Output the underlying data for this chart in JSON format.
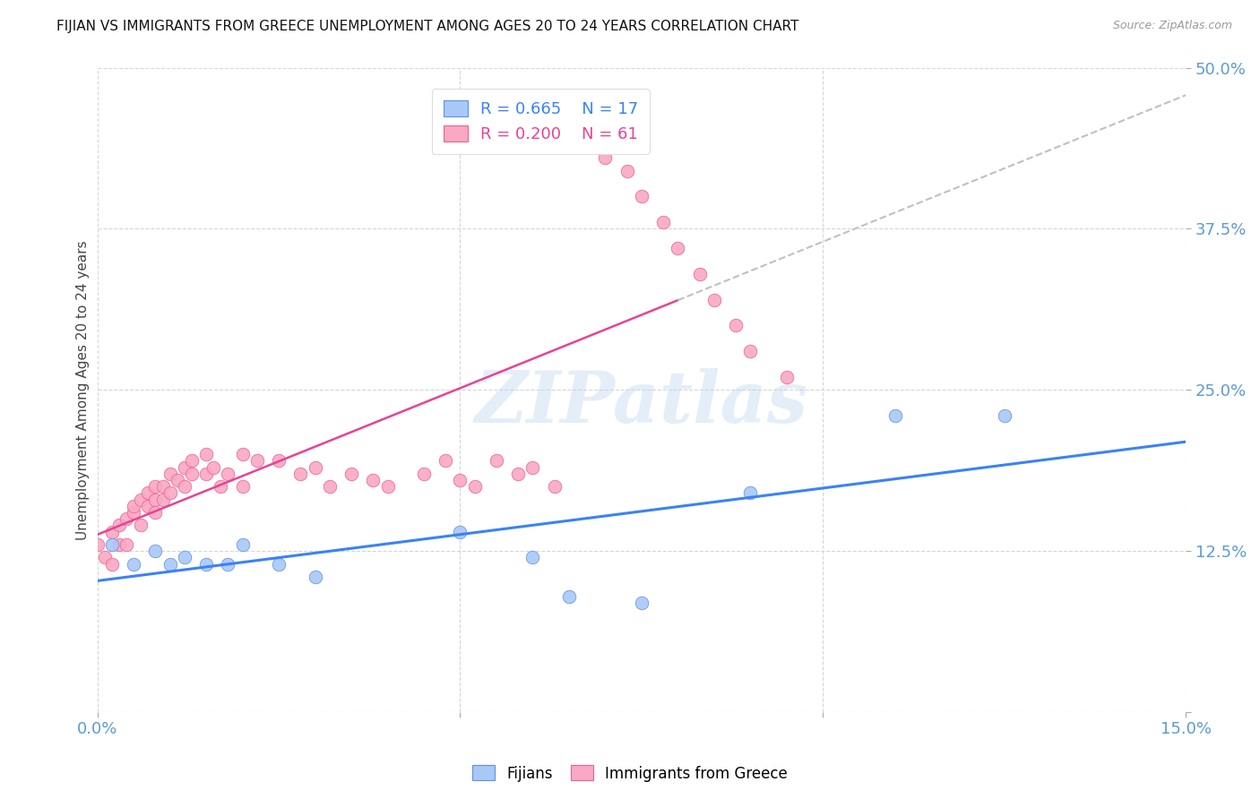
{
  "title": "FIJIAN VS IMMIGRANTS FROM GREECE UNEMPLOYMENT AMONG AGES 20 TO 24 YEARS CORRELATION CHART",
  "source": "Source: ZipAtlas.com",
  "ylabel": "Unemployment Among Ages 20 to 24 years",
  "xlim": [
    0.0,
    0.15
  ],
  "ylim": [
    0.0,
    0.5
  ],
  "xticks": [
    0.0,
    0.05,
    0.1,
    0.15
  ],
  "xticklabels": [
    "0.0%",
    "",
    "",
    "15.0%"
  ],
  "yticks": [
    0.0,
    0.125,
    0.25,
    0.375,
    0.5
  ],
  "yticklabels": [
    "",
    "12.5%",
    "25.0%",
    "37.5%",
    "50.0%"
  ],
  "legend": {
    "blue_r": "0.665",
    "blue_n": "17",
    "pink_r": "0.200",
    "pink_n": "61"
  },
  "fijians": {
    "color": "#a8c8f8",
    "trendline_color": "#3b82f6",
    "x": [
      0.002,
      0.005,
      0.008,
      0.01,
      0.012,
      0.015,
      0.018,
      0.02,
      0.025,
      0.03,
      0.05,
      0.06,
      0.065,
      0.075,
      0.09,
      0.11,
      0.125
    ],
    "y": [
      0.13,
      0.115,
      0.125,
      0.115,
      0.12,
      0.115,
      0.115,
      0.13,
      0.115,
      0.105,
      0.14,
      0.12,
      0.09,
      0.085,
      0.17,
      0.23,
      0.23
    ]
  },
  "greece": {
    "color": "#f9a8c4",
    "trendline_color": "#e84393",
    "x": [
      0.0,
      0.001,
      0.002,
      0.002,
      0.003,
      0.003,
      0.004,
      0.004,
      0.005,
      0.005,
      0.006,
      0.006,
      0.007,
      0.007,
      0.008,
      0.008,
      0.008,
      0.009,
      0.009,
      0.01,
      0.01,
      0.011,
      0.012,
      0.012,
      0.013,
      0.013,
      0.015,
      0.015,
      0.016,
      0.017,
      0.018,
      0.02,
      0.02,
      0.022,
      0.025,
      0.028,
      0.03,
      0.032,
      0.035,
      0.038,
      0.04,
      0.045,
      0.048,
      0.05,
      0.052,
      0.055,
      0.058,
      0.06,
      0.063,
      0.065,
      0.068,
      0.07,
      0.073,
      0.075,
      0.078,
      0.08,
      0.083,
      0.085,
      0.088,
      0.09,
      0.095
    ],
    "y": [
      0.13,
      0.12,
      0.115,
      0.14,
      0.13,
      0.145,
      0.15,
      0.13,
      0.155,
      0.16,
      0.165,
      0.145,
      0.17,
      0.16,
      0.175,
      0.165,
      0.155,
      0.175,
      0.165,
      0.185,
      0.17,
      0.18,
      0.19,
      0.175,
      0.195,
      0.185,
      0.2,
      0.185,
      0.19,
      0.175,
      0.185,
      0.2,
      0.175,
      0.195,
      0.195,
      0.185,
      0.19,
      0.175,
      0.185,
      0.18,
      0.175,
      0.185,
      0.195,
      0.18,
      0.175,
      0.195,
      0.185,
      0.19,
      0.175,
      0.46,
      0.44,
      0.43,
      0.42,
      0.4,
      0.38,
      0.36,
      0.34,
      0.32,
      0.3,
      0.28,
      0.26
    ]
  },
  "greece_trend_xmax": 0.08,
  "watermark_text": "ZIPatlas",
  "bg_color": "#ffffff",
  "grid_color": "#cccccc",
  "tick_color": "#5b9bd5",
  "title_fontsize": 11,
  "axis_label_fontsize": 11,
  "tick_fontsize": 13
}
